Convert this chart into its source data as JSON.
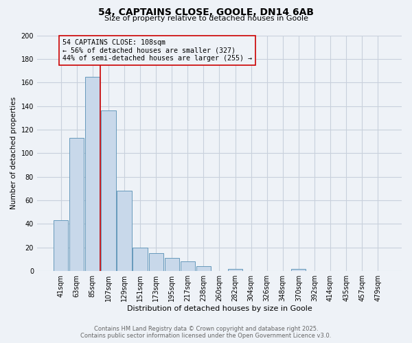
{
  "title": "54, CAPTAINS CLOSE, GOOLE, DN14 6AB",
  "subtitle": "Size of property relative to detached houses in Goole",
  "xlabel": "Distribution of detached houses by size in Goole",
  "ylabel": "Number of detached properties",
  "categories": [
    "41sqm",
    "63sqm",
    "85sqm",
    "107sqm",
    "129sqm",
    "151sqm",
    "173sqm",
    "195sqm",
    "217sqm",
    "238sqm",
    "260sqm",
    "282sqm",
    "304sqm",
    "326sqm",
    "348sqm",
    "370sqm",
    "392sqm",
    "414sqm",
    "435sqm",
    "457sqm",
    "479sqm"
  ],
  "values": [
    43,
    113,
    165,
    136,
    68,
    20,
    15,
    11,
    8,
    4,
    0,
    2,
    0,
    0,
    0,
    2,
    0,
    0,
    0,
    0,
    0
  ],
  "bar_color": "#c8d8ea",
  "bar_edge_color": "#6699bb",
  "property_line_color": "#cc0000",
  "property_line_index": 3,
  "annotation_line1": "54 CAPTAINS CLOSE: 108sqm",
  "annotation_line2": "← 56% of detached houses are smaller (327)",
  "annotation_line3": "44% of semi-detached houses are larger (255) →",
  "annotation_box_edge": "#cc0000",
  "background_color": "#eef2f7",
  "grid_color": "#c8d0dc",
  "ylim": [
    0,
    200
  ],
  "yticks": [
    0,
    20,
    40,
    60,
    80,
    100,
    120,
    140,
    160,
    180,
    200
  ],
  "footer_line1": "Contains HM Land Registry data © Crown copyright and database right 2025.",
  "footer_line2": "Contains public sector information licensed under the Open Government Licence v3.0."
}
